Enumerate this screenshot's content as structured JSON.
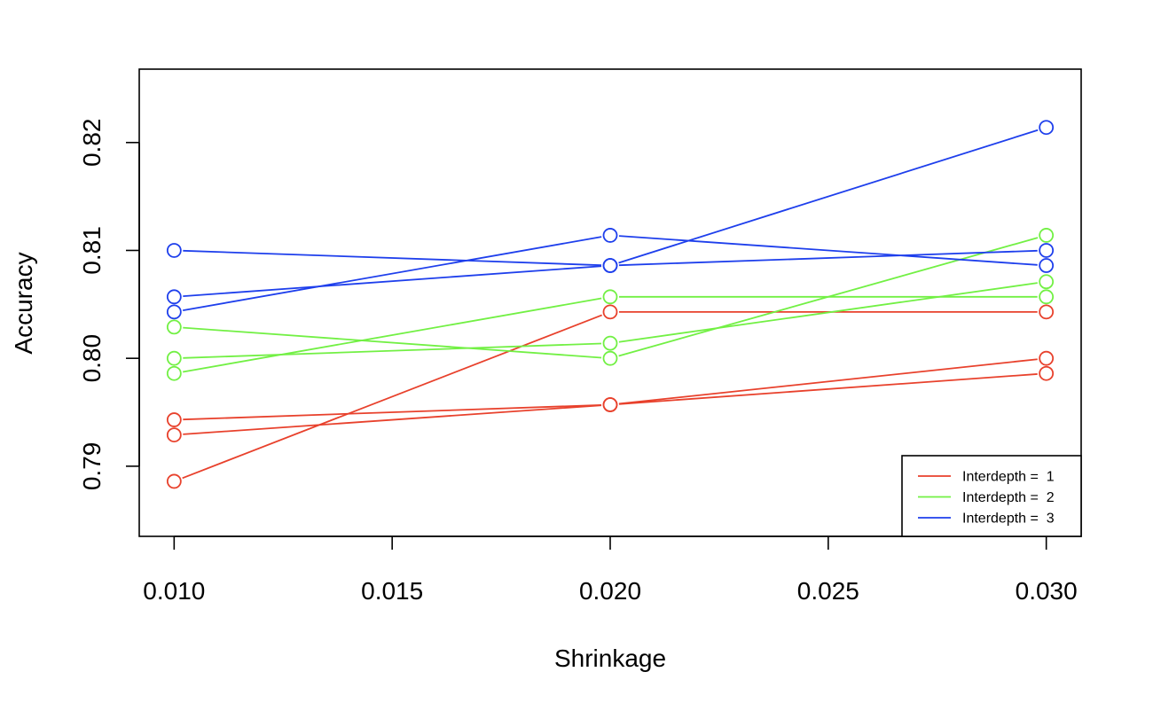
{
  "chart_data": {
    "type": "line",
    "xlabel": "Shrinkage",
    "ylabel": "Accuracy",
    "xlim": [
      0.0092,
      0.0308
    ],
    "ylim": [
      0.7835,
      0.8268
    ],
    "x_ticks": [
      0.01,
      0.015,
      0.02,
      0.025,
      0.03
    ],
    "x_tick_labels": [
      "0.010",
      "0.015",
      "0.020",
      "0.025",
      "0.030"
    ],
    "y_ticks": [
      0.79,
      0.8,
      0.81,
      0.82
    ],
    "y_tick_labels": [
      "0.79",
      "0.80",
      "0.81",
      "0.82"
    ],
    "grid": false,
    "legend_position": "bottom-right",
    "colors": {
      "1": "#E8412C",
      "2": "#72F044",
      "3": "#1E3FEC"
    },
    "legend": [
      {
        "label": "Interdepth =  1",
        "group": "1"
      },
      {
        "label": "Interdepth =  2",
        "group": "2"
      },
      {
        "label": "Interdepth =  3",
        "group": "3"
      }
    ],
    "series": [
      {
        "group": "1",
        "x": [
          0.01,
          0.02,
          0.03
        ],
        "y": [
          0.7943,
          0.7957,
          0.7986
        ]
      },
      {
        "group": "1",
        "x": [
          0.01,
          0.02,
          0.03
        ],
        "y": [
          0.7929,
          0.7957,
          0.8
        ]
      },
      {
        "group": "1",
        "x": [
          0.01,
          0.02,
          0.03
        ],
        "y": [
          0.7886,
          0.8043,
          0.8043
        ]
      },
      {
        "group": "2",
        "x": [
          0.01,
          0.02,
          0.03
        ],
        "y": [
          0.8029,
          0.8,
          0.8114
        ]
      },
      {
        "group": "2",
        "x": [
          0.01,
          0.02,
          0.03
        ],
        "y": [
          0.8,
          0.8014,
          0.8071
        ]
      },
      {
        "group": "2",
        "x": [
          0.01,
          0.02,
          0.03
        ],
        "y": [
          0.7986,
          0.8057,
          0.8057
        ]
      },
      {
        "group": "3",
        "x": [
          0.01,
          0.02,
          0.03
        ],
        "y": [
          0.81,
          0.8086,
          0.8214
        ]
      },
      {
        "group": "3",
        "x": [
          0.01,
          0.02,
          0.03
        ],
        "y": [
          0.8057,
          0.8086,
          0.81
        ]
      },
      {
        "group": "3",
        "x": [
          0.01,
          0.02,
          0.03
        ],
        "y": [
          0.8043,
          0.8114,
          0.8086
        ]
      }
    ]
  }
}
